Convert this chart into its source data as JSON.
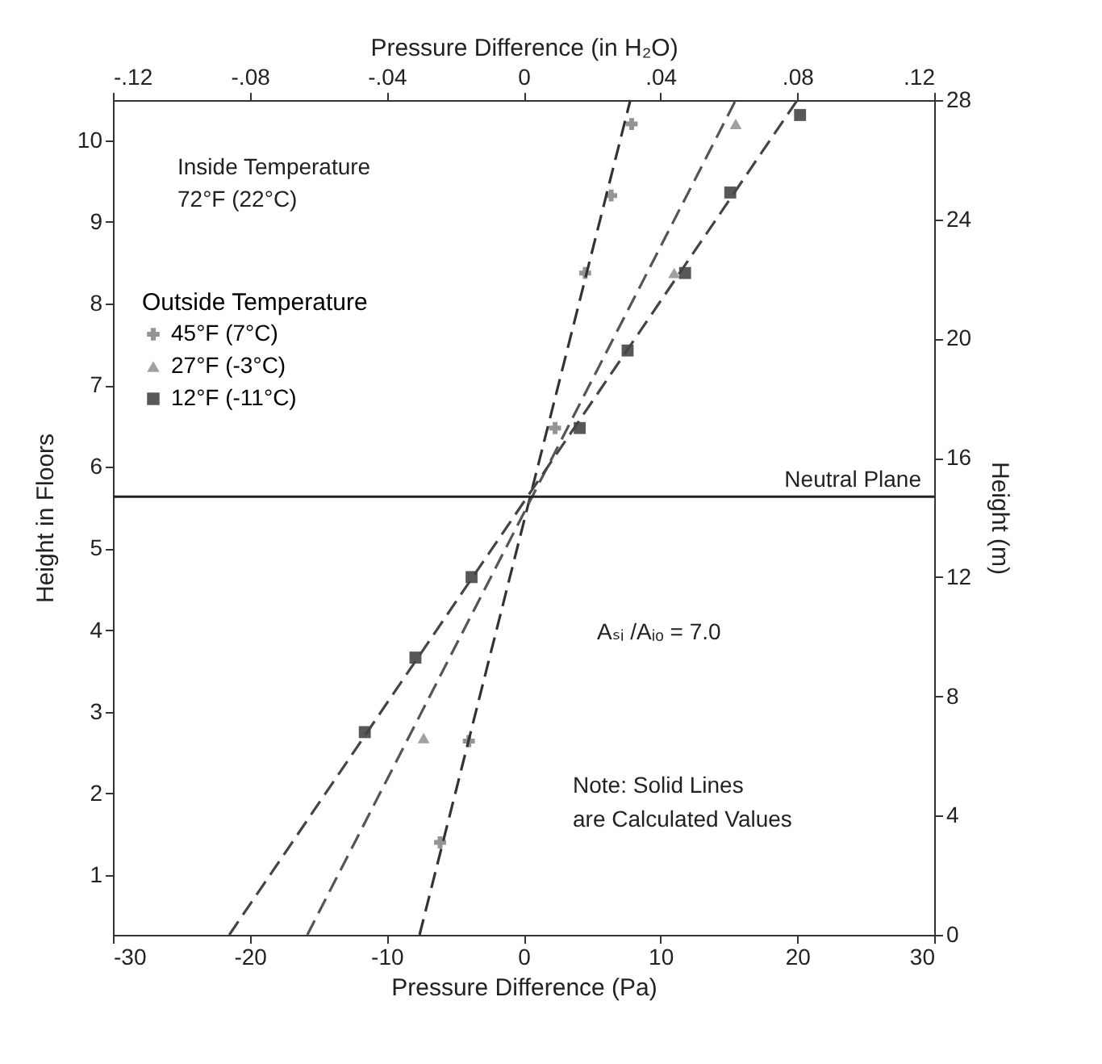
{
  "chart_data": {
    "type": "scatter",
    "xlabel": "Pressure Difference (Pa)",
    "x2label": "Pressure Difference (in H₂O)",
    "ylabel": "Height in Floors",
    "y2label": "Height (m)",
    "legend_title": "Outside Temperature",
    "legend": "top left",
    "grid": false,
    "xlim": [
      -30,
      30
    ],
    "xticks": [
      -30,
      -20,
      -10,
      0,
      10,
      20,
      30
    ],
    "x2lim": [
      -0.12,
      0.12
    ],
    "x2ticks": [
      {
        "value": -0.12,
        "label": "-.12"
      },
      {
        "value": -0.08,
        "label": "-.08"
      },
      {
        "value": -0.04,
        "label": "-.04"
      },
      0,
      {
        "value": 0.04,
        "label": ".04"
      },
      {
        "value": 0.08,
        "label": ".08"
      },
      {
        "value": 0.12,
        "label": ".12"
      }
    ],
    "ylim": [
      0.27,
      10.49
    ],
    "yticks": [
      1,
      2,
      3,
      4,
      5,
      6,
      7,
      8,
      9,
      10
    ],
    "y2lim": [
      0,
      28
    ],
    "y2ticks": [
      0,
      4,
      8,
      12,
      16,
      20,
      24,
      28
    ],
    "series": [
      {
        "name": "45°F (7°C)",
        "marker": "cross",
        "color": "#666666",
        "axis": "y2",
        "x": [
          7.9,
          6.4,
          4.5,
          2.3,
          -4.0,
          -6.1
        ],
        "values": [
          27.2,
          24.8,
          22.2,
          17.0,
          6.5,
          3.1
        ]
      },
      {
        "name": "27°F (-3°C)",
        "marker": "triangle",
        "color": "#777777",
        "axis": "y2",
        "x": [
          15.5,
          11.0,
          8.0,
          -7.3
        ],
        "values": [
          27.2,
          22.2,
          null,
          6.6
        ]
      },
      {
        "name": "12°F (-11°C)",
        "marker": "square",
        "color": "#111111",
        "axis": "y2",
        "x": [
          20.2,
          15.1,
          11.8,
          7.6,
          4.1,
          -3.8,
          -7.9,
          -11.6
        ],
        "values": [
          27.5,
          24.9,
          22.2,
          19.6,
          17.0,
          12.0,
          9.3,
          6.8
        ]
      },
      {
        "type": "line",
        "line_style": "dashed",
        "color": "#333333",
        "axis": "y2",
        "x": [
          -7.6,
          7.8
        ],
        "values": [
          0,
          28
        ]
      },
      {
        "type": "line",
        "line_style": "dashed",
        "color": "#555555",
        "axis": "y2",
        "x": [
          -15.8,
          15.5
        ],
        "values": [
          0,
          28
        ]
      },
      {
        "type": "line",
        "line_style": "dashed",
        "color": "#444444",
        "axis": "y2",
        "x": [
          -21.5,
          20.0
        ],
        "values": [
          0,
          28
        ]
      }
    ],
    "ref_lines": [
      {
        "axis": "y2",
        "value": 14.7,
        "label": "Neutral Plane",
        "color": "#222222"
      }
    ],
    "annotations": [
      "Inside Temperature",
      "72°F (22°C)",
      "Aₛᵢ /Aᵢₒ = 7.0",
      "Note: Solid Lines",
      "are Calculated Values"
    ]
  }
}
